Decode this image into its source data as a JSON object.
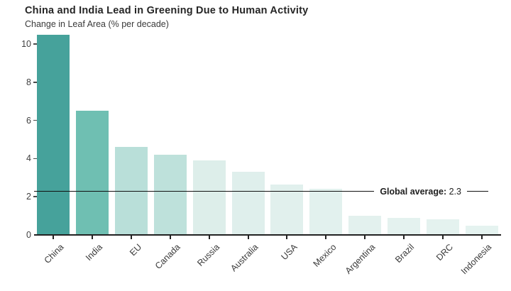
{
  "header": {
    "title": "China and India Lead in Greening Due to Human Activity",
    "subtitle": "Change in Leaf Area (% per decade)"
  },
  "chart_data": {
    "type": "bar",
    "title": "China and India Lead in Greening Due to Human Activity",
    "subtitle": "Change in Leaf Area (% per decade)",
    "categories": [
      "China",
      "India",
      "EU",
      "Canada",
      "Russia",
      "Australia",
      "USA",
      "Mexico",
      "Argentina",
      "Brazil",
      "DRC",
      "Indonesia"
    ],
    "values": [
      10.5,
      6.5,
      4.6,
      4.2,
      3.9,
      3.3,
      2.65,
      2.4,
      1.0,
      0.9,
      0.8,
      0.5
    ],
    "bar_colors": [
      "#46a29b",
      "#6fbfb2",
      "#b9dfd9",
      "#bee1db",
      "#ddeeea",
      "#dfefec",
      "#e1f0ed",
      "#e2f1ee",
      "#e3f1ee",
      "#e4f2ef",
      "#e4f2ef",
      "#e5f3f0"
    ],
    "xlabel": "",
    "ylabel": "Change in Leaf Area (% per decade)",
    "ylim": [
      0,
      10.7
    ],
    "yticks": [
      0,
      2,
      4,
      6,
      8,
      10
    ],
    "grid": false,
    "legend": false,
    "annotation": {
      "label": "Global average:",
      "value": "2.3",
      "y": 2.3
    },
    "axis_color": "#222222",
    "label_color": "#3a3a3a",
    "background_color": "#ffffff"
  }
}
